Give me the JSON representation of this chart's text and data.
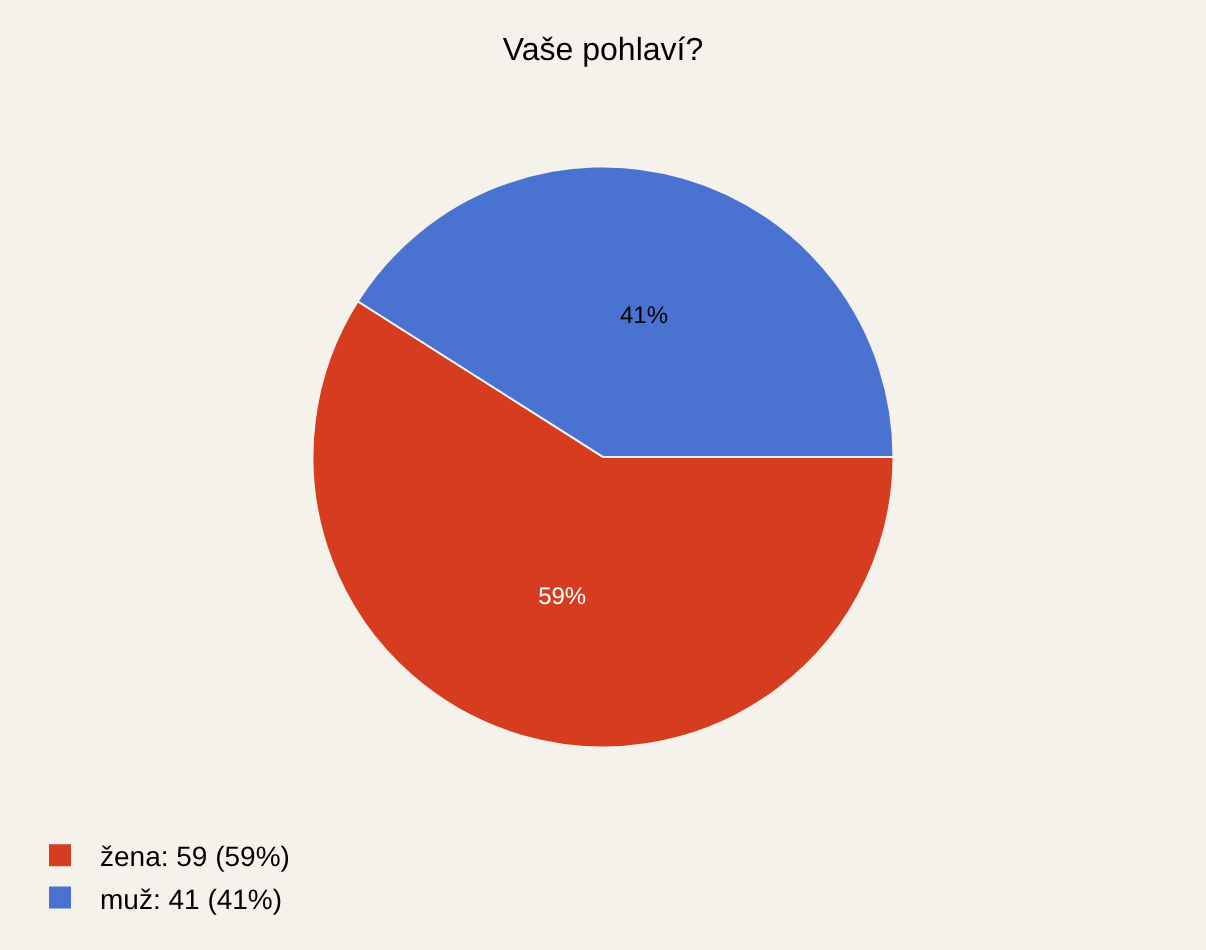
{
  "chart_data": {
    "type": "pie",
    "title": "Vaše pohlaví?",
    "categories": [
      "žena: 59 (59%)",
      "muž: 41 (41%)"
    ],
    "values": [
      59,
      41
    ],
    "value_labels": [
      "59%",
      "41%"
    ],
    "colors": [
      "#d63c1f",
      "#4a72d0"
    ],
    "legend": "bottom left"
  }
}
